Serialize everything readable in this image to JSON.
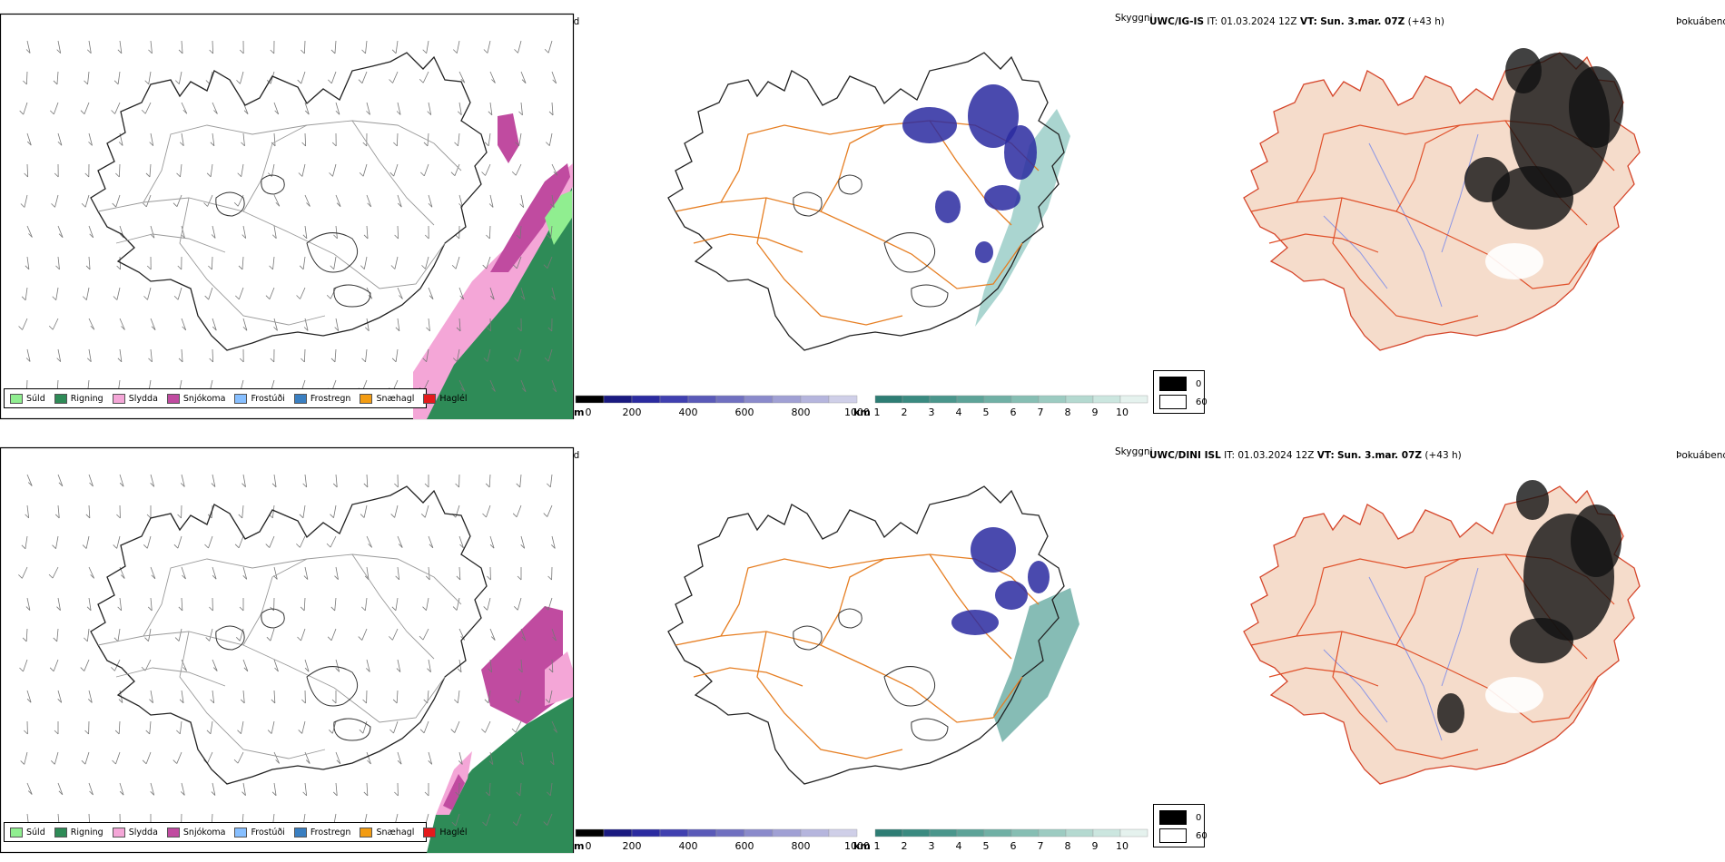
{
  "rows": [
    {
      "id": "igis",
      "model": "UWC/IG-IS",
      "it_label": "IT:",
      "it_value": "01.03.2024 12Z",
      "vt_label": "VT:",
      "vt_value": "Sun. 3.mar. 07Z",
      "lead": "(+43 h)",
      "precip_title": "Úrkomutegund",
      "vis_title": "Skyggni",
      "fog_title": "Þokuábendi"
    },
    {
      "id": "dini",
      "model": "UWC/DINI ISL",
      "it_label": "IT:",
      "it_value": "01.03.2024 12Z",
      "vt_label": "VT:",
      "vt_value": "Sun. 3.mar. 07Z",
      "lead": "(+43 h)",
      "precip_title": "Úrkomutegund",
      "vis_title": "Skyggni",
      "fog_title": "Þokuábendi"
    }
  ],
  "precip_legend": [
    {
      "label": "Súld",
      "color": "#90ee90"
    },
    {
      "label": "Rigning",
      "color": "#2e8b57"
    },
    {
      "label": "Slydda",
      "color": "#f4a6d7"
    },
    {
      "label": "Snjókoma",
      "color": "#c04ba0"
    },
    {
      "label": "Frostúði",
      "color": "#87bfff"
    },
    {
      "label": "Frostregn",
      "color": "#3a7fc1"
    },
    {
      "label": "Snæhagl",
      "color": "#f39c12"
    },
    {
      "label": "Haglél",
      "color": "#e41a1c"
    }
  ],
  "height_scale": {
    "unit": "m",
    "ticks": [
      "0",
      "200",
      "400",
      "600",
      "800",
      "1000"
    ],
    "colors": [
      "#000000",
      "#1a1a80",
      "#2b2ba0",
      "#4040b0",
      "#5a5ab8",
      "#7070c0",
      "#8a8acb",
      "#a0a0d4",
      "#b5b5dd",
      "#cfcfe8"
    ]
  },
  "km_scale": {
    "unit": "km",
    "ticks": [
      "1",
      "2",
      "3",
      "4",
      "5",
      "6",
      "7",
      "8",
      "9",
      "10"
    ],
    "colors": [
      "#2e7d74",
      "#3a8a80",
      "#4a968c",
      "#5da398",
      "#70b0a5",
      "#86beb3",
      "#9ccbc1",
      "#b4d9d0",
      "#cbe6df",
      "#e5f2ee"
    ]
  },
  "fog_legend": [
    {
      "label": "0",
      "color": "#000000"
    },
    {
      "label": "60",
      "color": "#ffffff"
    }
  ],
  "colors": {
    "coast": "#333333",
    "roads": "#e67e22",
    "fog_land": "#f5dccb",
    "fog_roads": "#e0502a",
    "rivers": "#8c96e6"
  }
}
